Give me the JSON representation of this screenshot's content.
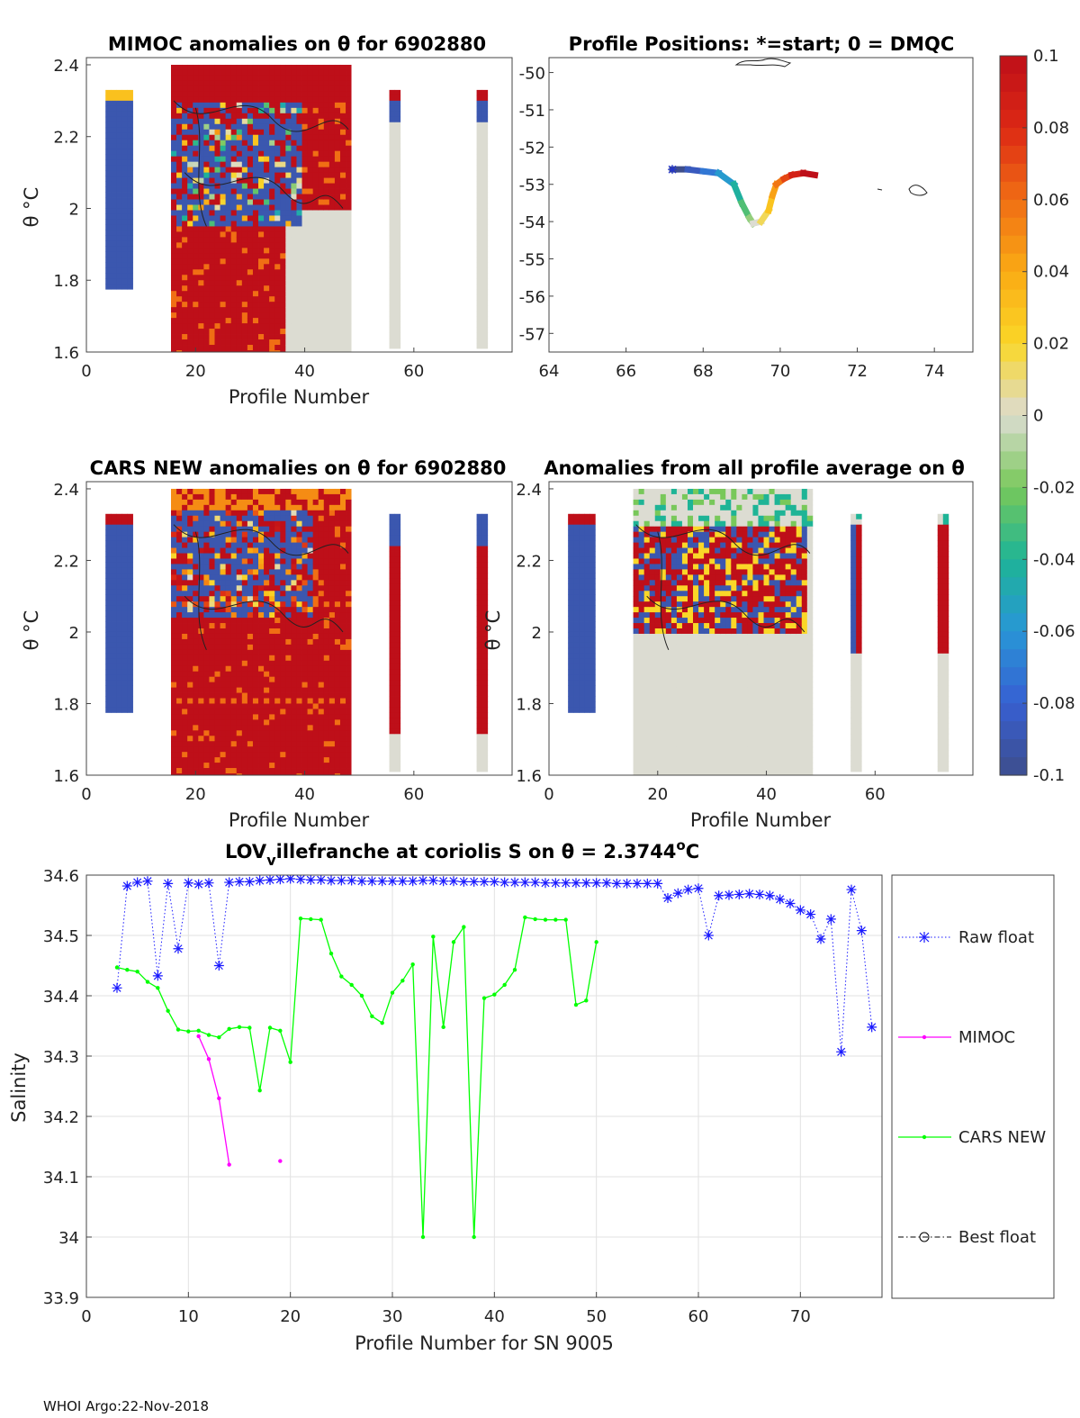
{
  "footer": "WHOI Argo:22-Nov-2018",
  "colorbar": {
    "ticks": [
      "0.1",
      "0.08",
      "0.06",
      "0.04",
      "0.02",
      "0",
      "-0.02",
      "-0.04",
      "-0.06",
      "-0.08",
      "-0.1"
    ]
  },
  "panels": {
    "mimoc": {
      "title": "MIMOC anomalies on θ  for 6902880",
      "xlabel": "Profile Number",
      "ylabel": "θ °C",
      "xticks": [
        "0",
        "20",
        "40",
        "60"
      ],
      "yticks": [
        "2.4",
        "2.2",
        "2",
        "1.8",
        "1.6"
      ]
    },
    "positions": {
      "title": "Profile Positions: *=start; 0 = DMQC",
      "xticks": [
        "64",
        "66",
        "68",
        "70",
        "72",
        "74"
      ],
      "yticks": [
        "-50",
        "-51",
        "-52",
        "-53",
        "-54",
        "-55",
        "-56",
        "-57"
      ]
    },
    "cars": {
      "title": "CARS NEW anomalies on θ for 6902880",
      "xlabel": "Profile Number",
      "ylabel": "θ °C",
      "xticks": [
        "0",
        "20",
        "40",
        "60"
      ],
      "yticks": [
        "2.4",
        "2.2",
        "2",
        "1.8",
        "1.6"
      ]
    },
    "avg": {
      "title": "Anomalies from all profile average on θ",
      "xlabel": "Profile Number",
      "ylabel": "θ °C",
      "xticks": [
        "0",
        "20",
        "40",
        "60"
      ],
      "yticks": [
        "2.4",
        "2.2",
        "2",
        "1.8",
        "1.6"
      ]
    },
    "salinity": {
      "title_main": "LOV",
      "title_sub": "v",
      "title_rest": "illefranche at coriolis S on θ = 2.3744",
      "title_sup": "o",
      "title_end": "C",
      "xlabel": "Profile Number for SN 9005",
      "ylabel": "Salinity",
      "xticks": [
        "0",
        "10",
        "20",
        "30",
        "40",
        "50",
        "60",
        "70"
      ],
      "yticks": [
        "34.6",
        "34.5",
        "34.4",
        "34.3",
        "34.2",
        "34.1",
        "34",
        "33.9"
      ]
    }
  },
  "legend": {
    "items": [
      "Raw float",
      "MIMOC",
      "CARS NEW",
      "Best float"
    ]
  },
  "colors": {
    "raw": "#1a1aff",
    "mimoc": "#ff00ff",
    "cars": "#00ff00",
    "best": "#000000",
    "pos_red": "#ff2a2a",
    "pos_blue": "#3355ee"
  },
  "chart_data": [
    {
      "type": "heatmap",
      "title": "MIMOC anomalies on θ  for 6902880",
      "xlabel": "Profile Number",
      "ylabel": "θ °C",
      "xlim": [
        0,
        78
      ],
      "ylim": [
        1.6,
        2.42
      ],
      "clim": [
        -0.1,
        0.1
      ]
    },
    {
      "type": "scatter",
      "title": "Profile Positions: *=start; 0 = DMQC",
      "xlim": [
        64,
        75
      ],
      "ylim": [
        -57.5,
        -49.6
      ],
      "track_x": [
        67.2,
        67.6,
        68.0,
        68.4,
        68.8,
        69.0,
        69.2,
        69.3,
        69.5,
        69.7,
        69.8,
        69.9,
        70.1,
        70.3,
        70.6,
        70.9
      ],
      "track_y": [
        -52.6,
        -52.6,
        -52.65,
        -52.7,
        -53.0,
        -53.5,
        -53.9,
        -54.05,
        -54.0,
        -53.7,
        -53.3,
        -53.0,
        -52.85,
        -52.75,
        -52.7,
        -52.75
      ]
    },
    {
      "type": "heatmap",
      "title": "CARS NEW anomalies on θ for 6902880",
      "xlabel": "Profile Number",
      "ylabel": "θ °C",
      "xlim": [
        0,
        78
      ],
      "ylim": [
        1.6,
        2.42
      ],
      "clim": [
        -0.1,
        0.1
      ]
    },
    {
      "type": "heatmap",
      "title": "Anomalies from all profile average on θ",
      "xlabel": "Profile Number",
      "ylabel": "θ °C",
      "xlim": [
        0,
        78
      ],
      "ylim": [
        1.6,
        2.42
      ],
      "clim": [
        -0.1,
        0.1
      ]
    },
    {
      "type": "line",
      "title": "LOVvillefranche at coriolis S on θ = 2.3744°C",
      "xlabel": "Profile Number for SN 9005",
      "ylabel": "Salinity",
      "xlim": [
        0,
        78
      ],
      "ylim": [
        33.9,
        34.6
      ],
      "series": [
        {
          "name": "Raw float",
          "x": [
            3,
            4,
            5,
            6,
            7,
            8,
            9,
            10,
            11,
            12,
            13,
            14,
            15,
            16,
            17,
            18,
            19,
            20,
            21,
            22,
            23,
            24,
            25,
            26,
            27,
            28,
            29,
            30,
            31,
            32,
            33,
            34,
            35,
            36,
            37,
            38,
            39,
            40,
            41,
            42,
            43,
            44,
            45,
            46,
            47,
            48,
            49,
            50,
            51,
            52,
            53,
            54,
            55,
            56,
            57,
            58,
            59,
            60,
            61,
            62,
            63,
            64,
            65,
            66,
            67,
            68,
            69,
            70,
            71,
            72,
            73,
            74,
            75,
            76,
            77
          ],
          "y": [
            34.413,
            34.582,
            34.588,
            34.59,
            34.433,
            34.586,
            34.478,
            34.587,
            34.585,
            34.587,
            34.45,
            34.588,
            34.589,
            34.589,
            34.591,
            34.592,
            34.593,
            34.594,
            34.593,
            34.592,
            34.592,
            34.591,
            34.591,
            34.591,
            34.59,
            34.59,
            34.59,
            34.59,
            34.59,
            34.59,
            34.591,
            34.591,
            34.59,
            34.59,
            34.589,
            34.589,
            34.589,
            34.589,
            34.588,
            34.588,
            34.588,
            34.588,
            34.587,
            34.587,
            34.587,
            34.587,
            34.587,
            34.587,
            34.587,
            34.586,
            34.586,
            34.586,
            34.586,
            34.586,
            34.562,
            34.57,
            34.576,
            34.578,
            34.5,
            34.566,
            34.567,
            34.568,
            34.569,
            34.568,
            34.566,
            34.56,
            34.553,
            34.542,
            34.535,
            34.494,
            34.527,
            34.307,
            34.576,
            34.508,
            34.348
          ]
        },
        {
          "name": "MIMOC",
          "x": [
            11,
            12,
            13,
            14,
            19
          ],
          "y": [
            34.333,
            34.295,
            34.23,
            34.12,
            34.126
          ]
        },
        {
          "name": "CARS NEW",
          "x": [
            3,
            4,
            5,
            6,
            7,
            8,
            9,
            10,
            11,
            12,
            13,
            14,
            15,
            16,
            17,
            18,
            19,
            20,
            21,
            22,
            23,
            24,
            25,
            26,
            27,
            28,
            29,
            30,
            31,
            32,
            33,
            34,
            35,
            36,
            37,
            38,
            39,
            40,
            41,
            42,
            43,
            44,
            45,
            46,
            47,
            48,
            49,
            50
          ],
          "y": [
            34.447,
            34.443,
            34.44,
            34.423,
            34.413,
            34.375,
            34.344,
            34.341,
            34.342,
            34.335,
            34.331,
            34.345,
            34.348,
            34.347,
            34.243,
            34.347,
            34.342,
            34.29,
            34.528,
            34.527,
            34.526,
            34.47,
            34.432,
            34.418,
            34.4,
            34.366,
            34.355,
            34.405,
            34.425,
            34.452,
            34.0,
            34.498,
            34.348,
            34.489,
            34.514,
            34.0,
            34.396,
            34.402,
            34.418,
            34.443,
            34.53,
            34.527,
            34.526,
            34.526,
            34.526,
            34.385,
            34.392,
            34.489
          ]
        },
        {
          "name": "Best float",
          "x": [],
          "y": []
        }
      ]
    }
  ]
}
